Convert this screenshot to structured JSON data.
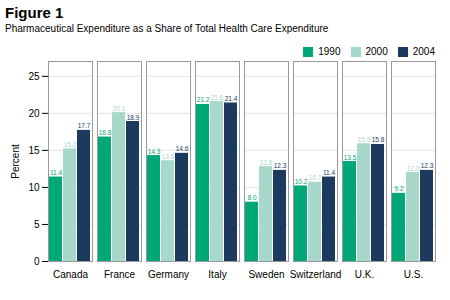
{
  "chart_data": {
    "type": "bar",
    "title": "Figure 1",
    "subtitle": "Pharmaceutical Expenditure as a Share of Total Health Care Expenditure",
    "ylabel": "Percent",
    "categories": [
      "Canada",
      "France",
      "Germany",
      "Italy",
      "Sweden",
      "Switzerland",
      "U.K.",
      "U.S."
    ],
    "series": [
      {
        "name": "1990",
        "color": "#00a878",
        "values": [
          11.4,
          16.8,
          14.3,
          21.2,
          8.0,
          10.2,
          13.5,
          9.2
        ],
        "value_labels": [
          "11.4",
          "16.8",
          "14.3",
          "21.2",
          "8.0",
          "10.2",
          "13.5",
          "9.2"
        ]
      },
      {
        "name": "2000",
        "color": "#a8d8ca",
        "values": [
          15.2,
          20.1,
          13.6,
          21.6,
          12.8,
          10.7,
          15.9,
          12.0
        ],
        "value_labels": [
          "15.2",
          "20.1",
          "13.6",
          "21.6",
          "12.8",
          "10.7",
          "15.9",
          "12.0"
        ]
      },
      {
        "name": "2004",
        "color": "#1b3a5e",
        "values": [
          17.7,
          18.9,
          14.6,
          21.4,
          12.3,
          11.4,
          15.8,
          12.3
        ],
        "value_labels": [
          "17.7",
          "18.9",
          "14.6",
          "21.4",
          "12.3",
          "11.4",
          "15.8",
          "12.3"
        ]
      }
    ],
    "ylim": [
      0,
      27
    ],
    "yticks": [
      0,
      5,
      10,
      15,
      20,
      25
    ],
    "grid": true,
    "legend": "upper right",
    "data_labels": true
  }
}
